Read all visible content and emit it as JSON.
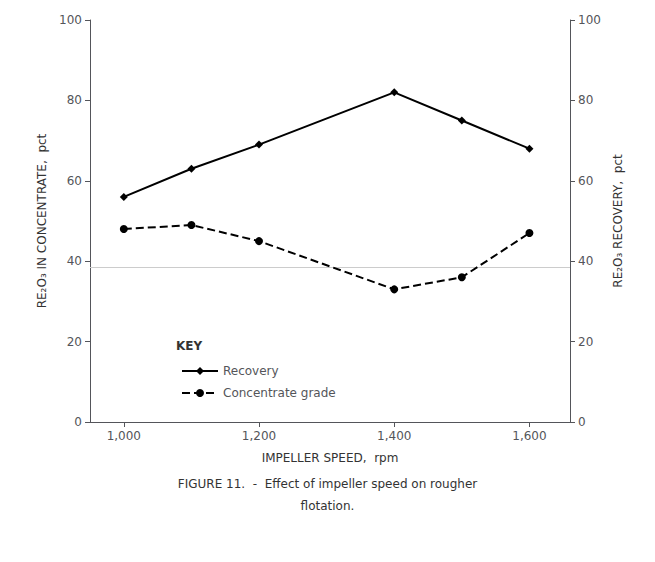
{
  "chart_data": {
    "type": "line",
    "x_label": "IMPELLER SPEED,  rpm",
    "y_label": "RE₂O₃ IN CONCENTRATE,  pct",
    "y2_label": "RE₂O₃ RECOVERY,  pct",
    "caption": [
      "FIGURE 11.  -  Effect of impeller speed on rougher",
      "flotation."
    ],
    "legend": "lower left",
    "legend_title": "KEY",
    "grid": false,
    "x": [
      1000,
      1100,
      1200,
      1400,
      1500,
      1600
    ],
    "xlim": [
      950,
      1660
    ],
    "xticks": [
      {
        "value": 1000,
        "label": "1,000"
      },
      {
        "value": 1200,
        "label": "1,200"
      },
      {
        "value": 1400,
        "label": "1,400"
      },
      {
        "value": 1600,
        "label": "1,600"
      }
    ],
    "ylim": [
      0,
      100
    ],
    "yticks": [
      0,
      20,
      40,
      60,
      80,
      100
    ],
    "y2lim": [
      0,
      100
    ],
    "y2ticks": [
      0,
      20,
      40,
      60,
      80,
      100
    ],
    "hline": 38.5,
    "series": [
      {
        "name": "Recovery",
        "values": [
          56,
          63,
          69,
          82,
          75,
          68
        ],
        "color": "#000000",
        "marker": "diamond",
        "line_style": "solid"
      },
      {
        "name": "Concentrate grade",
        "values": [
          48,
          49,
          45,
          33,
          36,
          47
        ],
        "color": "#000000",
        "marker": "circle",
        "line_style": "dashed"
      }
    ]
  }
}
